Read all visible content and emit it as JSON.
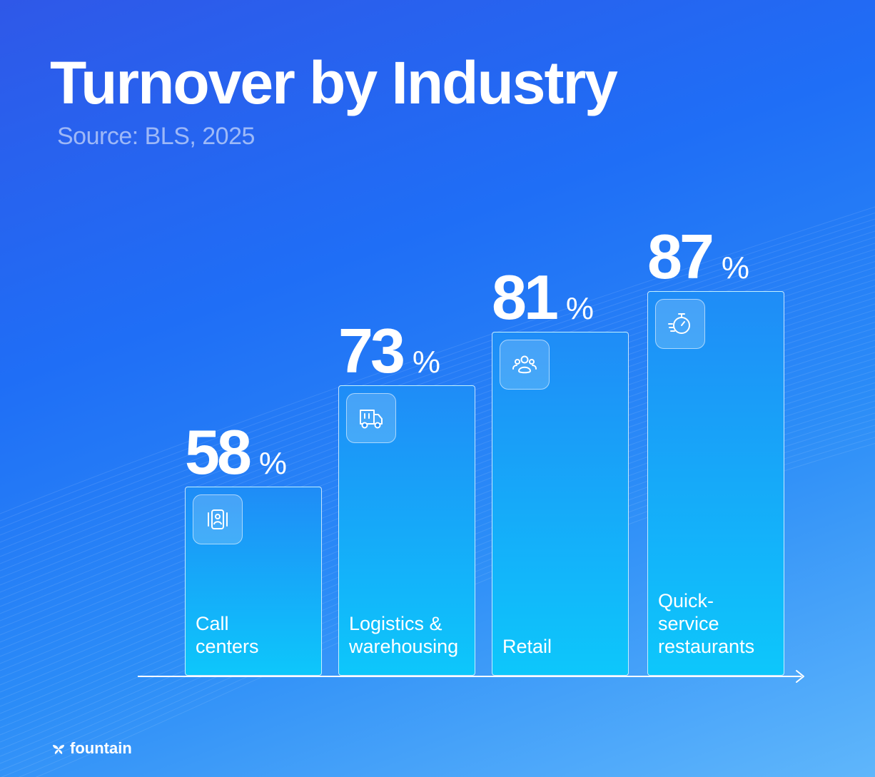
{
  "header": {
    "title": "Turnover by Industry",
    "subtitle": "Source: BLS, 2025"
  },
  "chart_data": {
    "type": "bar",
    "title": "Turnover by Industry",
    "subtitle": "Source: BLS, 2025",
    "categories": [
      "Call\ncenters",
      "Logistics &\nwarehousing",
      "Retail",
      "Quick-\nservice\nrestaurants"
    ],
    "values": [
      58,
      73,
      81,
      87
    ],
    "unit": "%",
    "icons": [
      "id-badge-icon",
      "delivery-truck-icon",
      "people-group-icon",
      "stopwatch-icon"
    ],
    "ylim": [
      0,
      100
    ],
    "grid": false,
    "colors": {
      "bar_top": "#1f8cf7",
      "bar_bottom": "#0dc7fb",
      "text": "#ffffff"
    }
  },
  "footer": {
    "brand": "fountain"
  }
}
